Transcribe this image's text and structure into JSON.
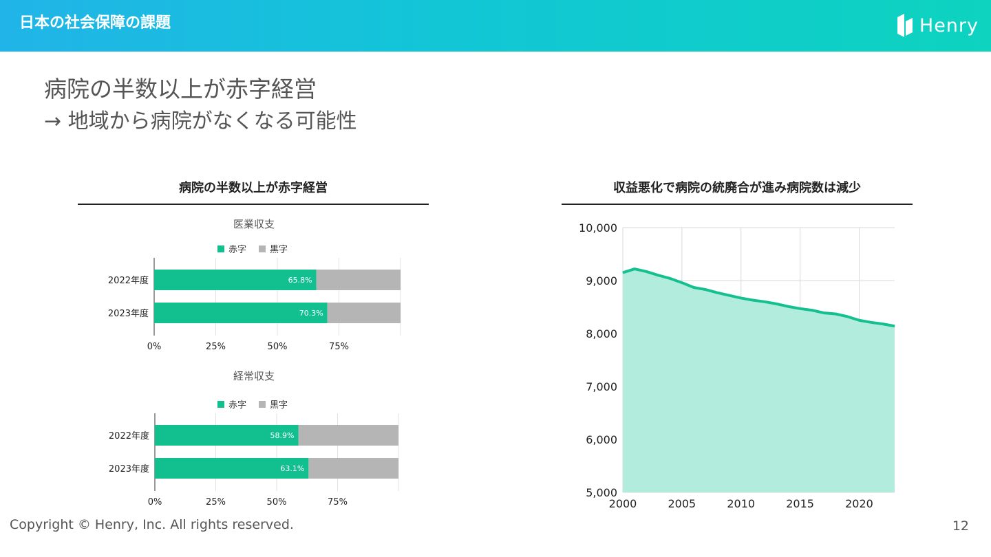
{
  "header": {
    "title": "日本の社会保障の課題",
    "logo_text": "Henry"
  },
  "headline": "病院の半数以上が赤字経営",
  "subline": "→ 地域から病院がなくなる可能性",
  "left_section": {
    "title": "病院の半数以上が赤字経営"
  },
  "right_section": {
    "title": "収益悪化で病院の統廃合が進み病院数は減少"
  },
  "colors": {
    "deficit": "#11bf8f",
    "surplus": "#b5b5b5",
    "area_fill": "#b2ecdc",
    "line": "#14c08f"
  },
  "chart_data": [
    {
      "type": "bar",
      "orientation": "horizontal",
      "stacked": true,
      "title": "医業収支",
      "categories": [
        "2022年度",
        "2023年度"
      ],
      "series": [
        {
          "name": "赤字",
          "values": [
            65.8,
            70.3
          ],
          "labels": [
            "65.8%",
            "70.3%"
          ]
        },
        {
          "name": "黒字",
          "values": [
            34.2,
            29.7
          ]
        }
      ],
      "xticks": [
        "0%",
        "25%",
        "50%",
        "75%"
      ],
      "xlim": [
        0,
        100
      ],
      "legend": "top"
    },
    {
      "type": "bar",
      "orientation": "horizontal",
      "stacked": true,
      "title": "経常収支",
      "categories": [
        "2022年度",
        "2023年度"
      ],
      "series": [
        {
          "name": "赤字",
          "values": [
            58.9,
            63.1
          ],
          "labels": [
            "58.9%",
            "63.1%"
          ]
        },
        {
          "name": "黒字",
          "values": [
            41.1,
            36.9
          ]
        }
      ],
      "xticks": [
        "0%",
        "25%",
        "50%",
        "75%"
      ],
      "xlim": [
        0,
        100
      ],
      "legend": "top"
    },
    {
      "type": "area",
      "x": [
        2000,
        2001,
        2002,
        2003,
        2004,
        2005,
        2006,
        2007,
        2008,
        2009,
        2010,
        2011,
        2012,
        2013,
        2014,
        2015,
        2016,
        2017,
        2018,
        2019,
        2020,
        2021,
        2022,
        2023
      ],
      "y": [
        9150,
        9220,
        9170,
        9100,
        9040,
        8960,
        8870,
        8830,
        8770,
        8720,
        8670,
        8630,
        8600,
        8560,
        8510,
        8470,
        8440,
        8390,
        8370,
        8320,
        8250,
        8210,
        8180,
        8140
      ],
      "xticks": [
        "2000",
        "2005",
        "2010",
        "2015",
        "2020"
      ],
      "yticks": [
        "5,000",
        "6,000",
        "7,000",
        "8,000",
        "9,000",
        "10,000"
      ],
      "xlim": [
        2000,
        2023
      ],
      "ylim": [
        5000,
        10000
      ],
      "grid": true
    }
  ],
  "footer": {
    "copyright": "Copyright © Henry, Inc. All rights reserved.",
    "page": "12"
  }
}
